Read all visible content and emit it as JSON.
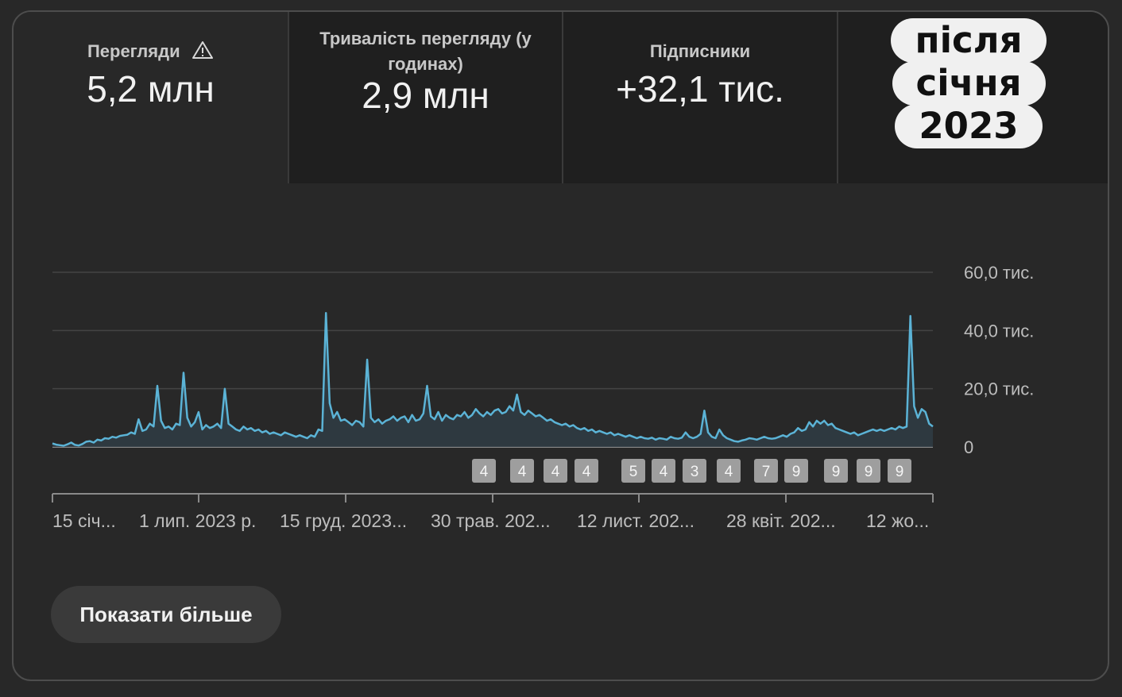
{
  "metrics": [
    {
      "label": "Перегляди",
      "value": "5,2 млн",
      "warning": true
    },
    {
      "label_line1": "Тривалість перегляду (у",
      "label_line2": "годинах)",
      "value": "2,9 млн"
    },
    {
      "label": "Підписники",
      "value": "+32,1 тис."
    }
  ],
  "badge": {
    "line1": "після",
    "line2": "січня",
    "line3": "2023"
  },
  "chart_data": {
    "type": "line",
    "y_ticks": [
      "60,0 тис.",
      "40,0 тис.",
      "20,0 тис.",
      "0"
    ],
    "x_ticks": [
      "15 січ...",
      "1 лип. 2023 р.",
      "15 груд. 2023...",
      "30 трав. 202...",
      "12 лист. 202...",
      "28 квіт. 202...",
      "12 жо..."
    ],
    "ylim": [
      0,
      60000
    ],
    "series_color": "#5bb3d6",
    "markers": [
      "4",
      "4",
      "4",
      "4",
      "5",
      "4",
      "3",
      "4",
      "7",
      "9",
      "9",
      "9",
      "9"
    ],
    "values": [
      1200,
      800,
      600,
      400,
      900,
      1500,
      700,
      500,
      1000,
      1800,
      2000,
      1500,
      2500,
      2200,
      3000,
      2800,
      3500,
      3200,
      3800,
      4000,
      4200,
      5000,
      4500,
      9500,
      5500,
      6000,
      8000,
      7000,
      21000,
      9000,
      6500,
      7000,
      6000,
      8000,
      7500,
      25500,
      10000,
      7000,
      8500,
      12000,
      6000,
      7500,
      6500,
      7000,
      8000,
      6500,
      20000,
      8000,
      7000,
      6000,
      5500,
      7000,
      6000,
      6500,
      5500,
      6000,
      5000,
      5500,
      4500,
      5000,
      4500,
      4000,
      5000,
      4500,
      4000,
      3500,
      4000,
      3500,
      3000,
      4000,
      3500,
      6000,
      5500,
      46000,
      15000,
      10000,
      12000,
      9000,
      9500,
      8500,
      7500,
      9000,
      8500,
      7000,
      30000,
      10000,
      8500,
      9500,
      8000,
      9000,
      9500,
      10500,
      9000,
      10000,
      10500,
      8500,
      11000,
      9000,
      9500,
      11500,
      21000,
      10500,
      9500,
      12000,
      9000,
      11000,
      10000,
      9500,
      11000,
      10500,
      12000,
      10000,
      11000,
      13000,
      11500,
      10500,
      12000,
      11000,
      12500,
      13000,
      11500,
      12000,
      14000,
      12500,
      18000,
      12000,
      11000,
      12500,
      11500,
      10500,
      11000,
      10000,
      9000,
      9500,
      8500,
      8000,
      7500,
      8000,
      7000,
      7500,
      6500,
      6000,
      6500,
      5500,
      6000,
      5000,
      5500,
      5000,
      4500,
      5000,
      4000,
      4500,
      4000,
      3500,
      4000,
      3500,
      3000,
      3500,
      3000,
      2800,
      3200,
      2500,
      3000,
      2800,
      2500,
      3500,
      3000,
      2800,
      3200,
      5000,
      3500,
      3000,
      3500,
      4500,
      12500,
      5000,
      3500,
      3000,
      6000,
      4000,
      3000,
      2500,
      2000,
      1800,
      2200,
      2500,
      3000,
      2800,
      2500,
      3000,
      3500,
      3000,
      2800,
      3000,
      3500,
      4000,
      3500,
      4500,
      5000,
      6500,
      5500,
      6000,
      8500,
      7000,
      9000,
      8000,
      9000,
      7500,
      8000,
      6500,
      6000,
      5500,
      5000,
      4500,
      5000,
      4000,
      4500,
      5000,
      5500,
      6000,
      5500,
      6000,
      5500,
      6000,
      6500,
      6000,
      7000,
      6500,
      7000,
      45000,
      14000,
      10000,
      13000,
      12000,
      8000,
      7000
    ]
  },
  "button": {
    "label": "Показати більше"
  }
}
